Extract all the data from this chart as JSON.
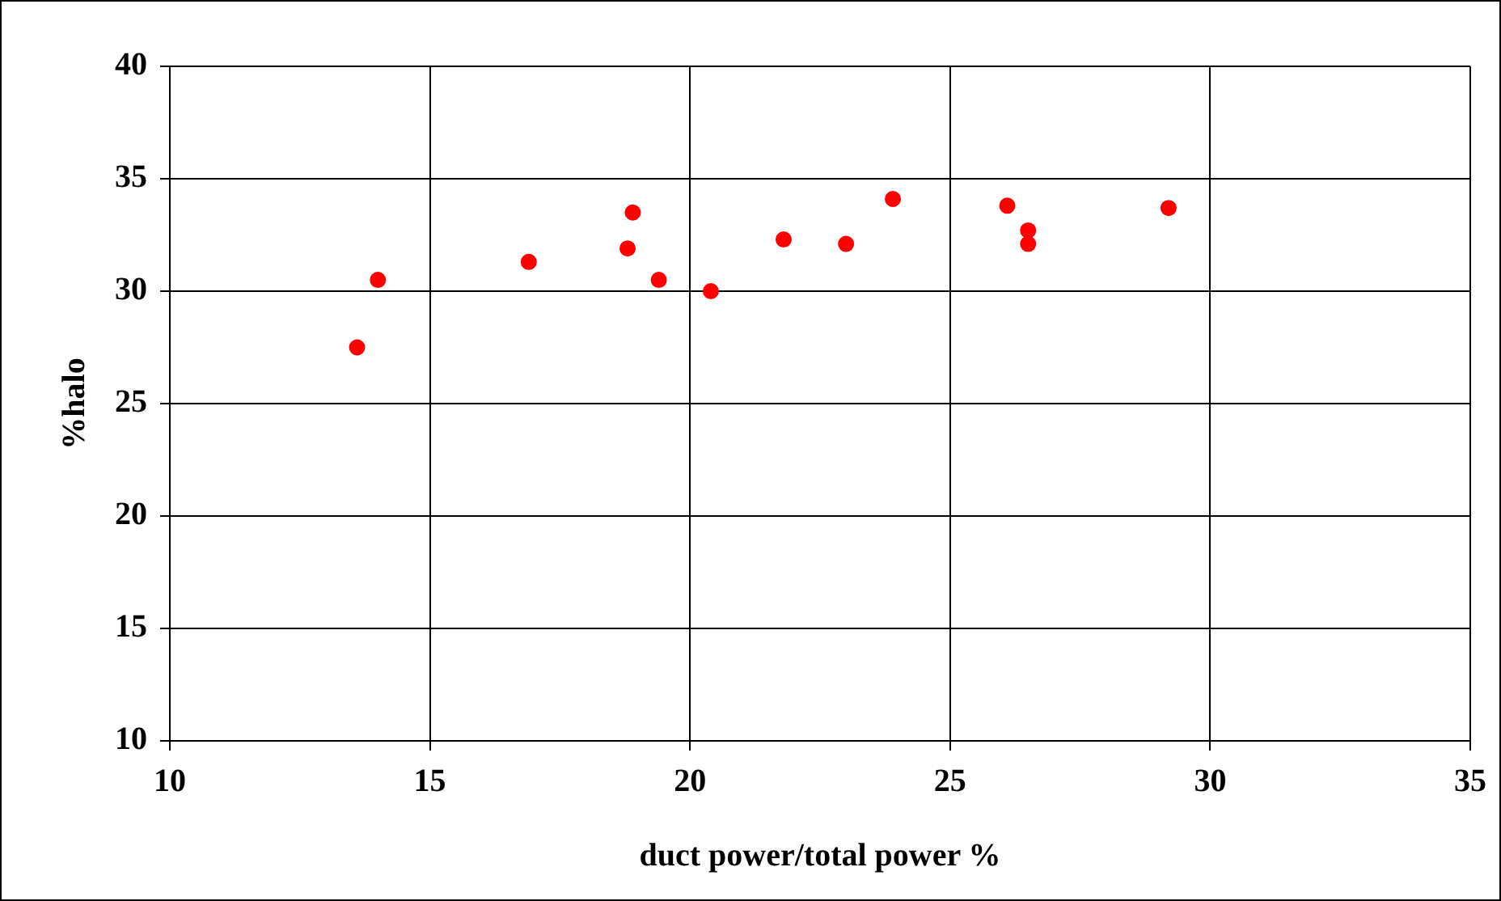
{
  "chart_data": {
    "type": "scatter",
    "xlabel": "duct power/total power %",
    "ylabel": "%halo",
    "x": [
      13.6,
      14.0,
      16.9,
      18.9,
      18.8,
      19.4,
      20.4,
      21.8,
      23.0,
      23.9,
      26.1,
      26.5,
      26.5,
      29.2
    ],
    "series": [
      {
        "color": "#ff0000",
        "values": [
          27.5,
          30.5,
          31.3,
          33.5,
          31.9,
          30.5,
          30.0,
          32.3,
          32.1,
          34.1,
          33.8,
          32.7,
          32.1,
          33.7
        ]
      }
    ],
    "xlim": [
      10,
      35
    ],
    "xticks": [
      10,
      15,
      20,
      25,
      30,
      35
    ],
    "ylim": [
      10,
      40
    ],
    "yticks": [
      10,
      15,
      20,
      25,
      30,
      35,
      40
    ],
    "grid": true,
    "marker": "circle"
  }
}
